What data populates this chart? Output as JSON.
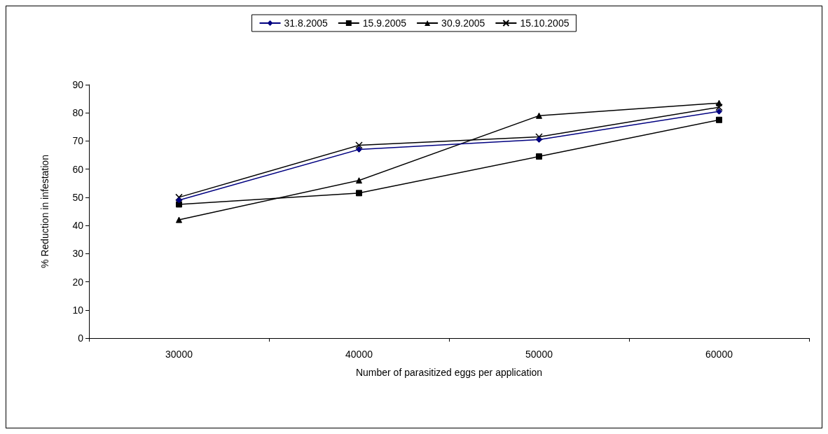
{
  "chart_data": {
    "type": "line",
    "xlabel": "Number of parasitized eggs per application",
    "ylabel": "% Reduction in infestation",
    "categories": [
      "30000",
      "40000",
      "50000",
      "60000"
    ],
    "series": [
      {
        "name": "31.8.2005",
        "color": "#000080",
        "marker": "diamond",
        "values": [
          49,
          67,
          70.5,
          80.5
        ]
      },
      {
        "name": "15.9.2005",
        "color": "#000000",
        "marker": "square",
        "values": [
          47.5,
          51.5,
          64.5,
          77.5
        ]
      },
      {
        "name": "30.9.2005",
        "color": "#000000",
        "marker": "triangle",
        "values": [
          42,
          56,
          79,
          83.5
        ]
      },
      {
        "name": "15.10.2005",
        "color": "#000000",
        "marker": "cross",
        "values": [
          50,
          68.5,
          71.5,
          82
        ]
      }
    ],
    "ylim": [
      0,
      90
    ],
    "yticks": [
      0,
      10,
      20,
      30,
      40,
      50,
      60,
      70,
      80,
      90
    ],
    "grid": false,
    "legend": "top",
    "line_style": "solid"
  }
}
